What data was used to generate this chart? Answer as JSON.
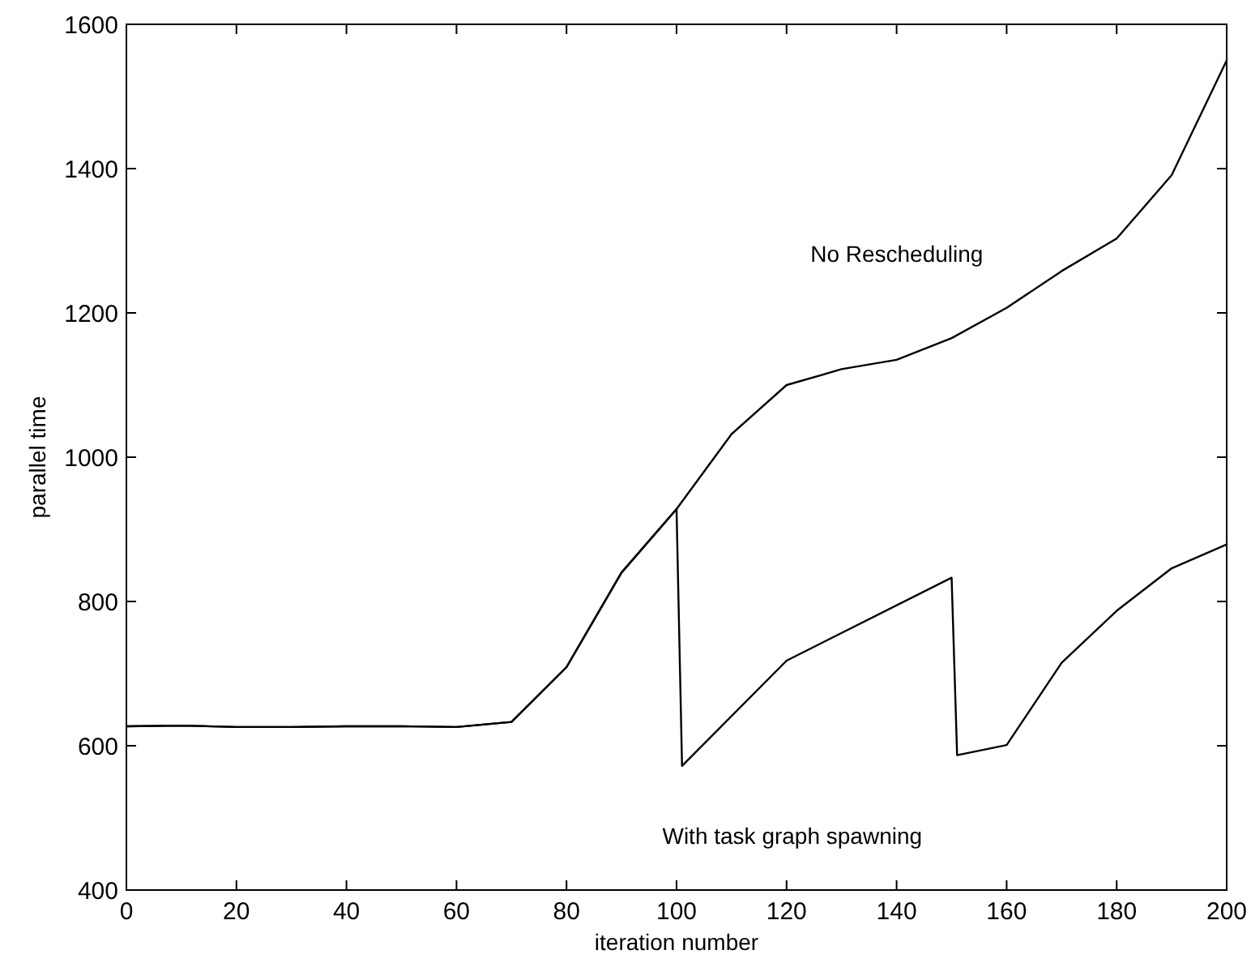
{
  "chart_data": {
    "type": "line",
    "xlabel": "iteration number",
    "ylabel": "parallel time",
    "xlim": [
      0,
      200
    ],
    "xticks": [
      0,
      20,
      40,
      60,
      80,
      100,
      120,
      140,
      160,
      180,
      200
    ],
    "ylim": [
      400,
      1600
    ],
    "yticks": [
      400,
      600,
      800,
      1000,
      1200,
      1400,
      1600
    ],
    "grid": false,
    "marker": "none",
    "line_style": "solid",
    "series": [
      {
        "name": "No Rescheduling",
        "color": "#000000",
        "x": [
          0,
          10,
          20,
          30,
          40,
          50,
          60,
          70,
          80,
          90,
          100,
          110,
          120,
          130,
          140,
          150,
          160,
          170,
          180,
          190,
          200
        ],
        "values": [
          627,
          628,
          626,
          626,
          627,
          627,
          626,
          633,
          709,
          840,
          928,
          1032,
          1100,
          1122,
          1135,
          1165,
          1207,
          1258,
          1303,
          1391,
          1550
        ]
      },
      {
        "name": "With task graph spawning",
        "color": "#000000",
        "x": [
          0,
          10,
          20,
          30,
          40,
          50,
          60,
          70,
          80,
          90,
          100,
          101,
          120,
          150,
          151,
          160,
          170,
          180,
          190,
          200
        ],
        "values": [
          627,
          628,
          626,
          626,
          627,
          627,
          626,
          633,
          709,
          840,
          928,
          572,
          718,
          833,
          587,
          601,
          715,
          787,
          846,
          879
        ]
      }
    ]
  }
}
